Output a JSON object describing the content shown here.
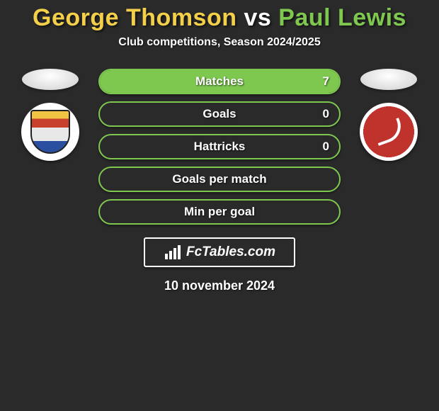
{
  "title": {
    "player1_name": "George Thomson",
    "vs": " vs ",
    "player2_name": "Paul Lewis",
    "player1_color": "#f3cf4a",
    "player2_color": "#7ec850"
  },
  "subtitle": "Club competitions, Season 2024/2025",
  "stats": [
    {
      "label": "Matches",
      "left_val": "",
      "right_val": "7",
      "left_pct": 0,
      "right_pct": 100,
      "left_fill": "#f3cf4a",
      "right_fill": "#7ec850",
      "border": "#7ec850"
    },
    {
      "label": "Goals",
      "left_val": "",
      "right_val": "0",
      "left_pct": 0,
      "right_pct": 0,
      "left_fill": "#f3cf4a",
      "right_fill": "#7ec850",
      "border": "#7ec850"
    },
    {
      "label": "Hattricks",
      "left_val": "",
      "right_val": "0",
      "left_pct": 0,
      "right_pct": 0,
      "left_fill": "#f3cf4a",
      "right_fill": "#7ec850",
      "border": "#7ec850"
    },
    {
      "label": "Goals per match",
      "left_val": "",
      "right_val": "",
      "left_pct": 0,
      "right_pct": 0,
      "left_fill": "#f3cf4a",
      "right_fill": "#7ec850",
      "border": "#7ec850"
    },
    {
      "label": "Min per goal",
      "left_val": "",
      "right_val": "",
      "left_pct": 0,
      "right_pct": 0,
      "left_fill": "#f3cf4a",
      "right_fill": "#7ec850",
      "border": "#7ec850"
    }
  ],
  "brand": {
    "text": "FcTables.com",
    "icon": "bar-chart-icon"
  },
  "date": "10 november 2024",
  "colors": {
    "background": "#2a2a2a"
  }
}
